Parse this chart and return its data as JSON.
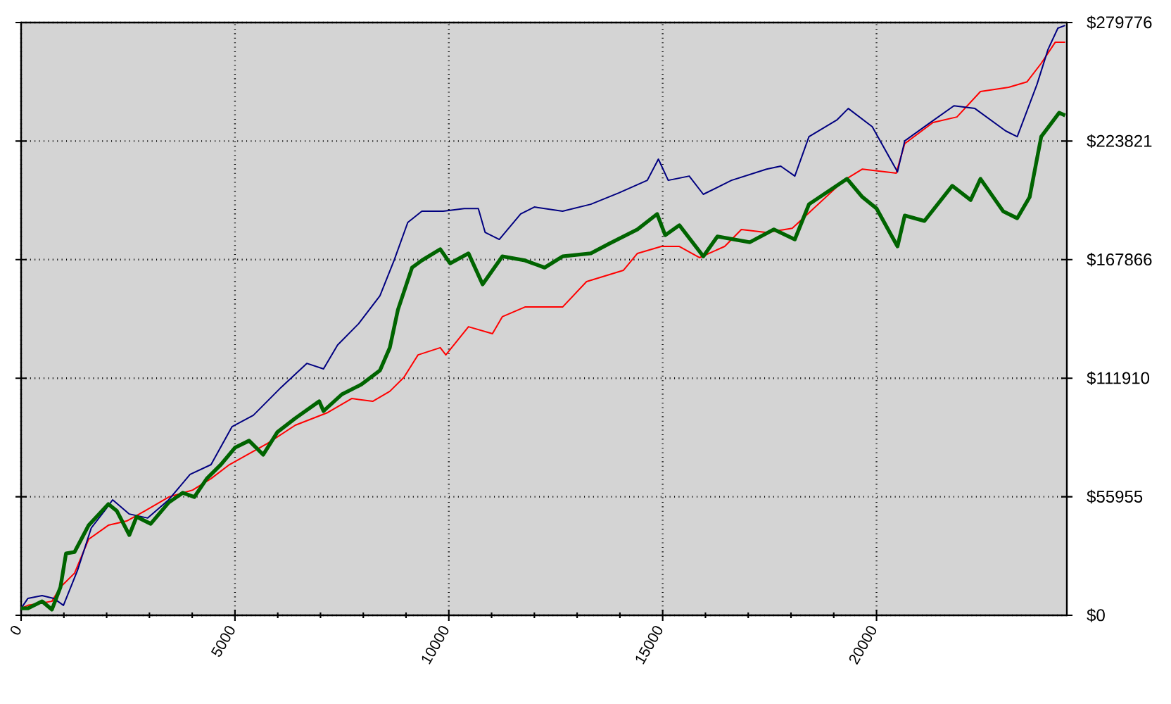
{
  "chart_data": {
    "type": "line",
    "xlim": [
      0,
      24450
    ],
    "ylim": [
      0,
      279776
    ],
    "xticks": [
      0,
      5000,
      10000,
      15000,
      20000
    ],
    "yticks": [
      {
        "value": 0,
        "label": "$0"
      },
      {
        "value": 55955,
        "label": "$55955"
      },
      {
        "value": 111910,
        "label": "$111910"
      },
      {
        "value": 167866,
        "label": "$167866"
      },
      {
        "value": 223821,
        "label": "$223821"
      },
      {
        "value": 279776,
        "label": "$279776"
      }
    ],
    "grid": true,
    "marker": "none",
    "line_style": "solid",
    "series": [
      {
        "color": "#ff0000",
        "x": [
          0,
          160,
          720,
          920,
          1250,
          1580,
          2040,
          2470,
          2890,
          3450,
          4010,
          4440,
          4870,
          5760,
          6410,
          7170,
          7730,
          8220,
          8620,
          8950,
          9280,
          9800,
          9930,
          10460,
          11020,
          11250,
          11780,
          12660,
          13220,
          14080,
          14410,
          14970,
          15390,
          15860,
          16450,
          16840,
          17430,
          18030,
          18490,
          19240,
          19670,
          20460,
          20660,
          21320,
          21880,
          22430,
          23090,
          23520,
          23850,
          24180,
          24410
        ],
        "values": [
          3300,
          4700,
          6600,
          13300,
          19900,
          35900,
          42500,
          44500,
          49200,
          55800,
          59100,
          64500,
          71100,
          81100,
          89700,
          95700,
          102300,
          101000,
          105700,
          112300,
          122900,
          126300,
          122900,
          136200,
          132900,
          140900,
          145500,
          145500,
          157500,
          162800,
          170800,
          174100,
          174100,
          168800,
          174100,
          182100,
          180700,
          182700,
          null,
          205300,
          210600,
          208700,
          222600,
          232600,
          235200,
          247200,
          249200,
          251800,
          260500,
          270500,
          270500
        ]
      },
      {
        "color": "#000080",
        "x": [
          0,
          160,
          490,
          760,
          990,
          1320,
          1640,
          1970,
          2140,
          2530,
          2960,
          3450,
          3950,
          4440,
          4930,
          5430,
          6080,
          6680,
          7070,
          7400,
          7890,
          8390,
          8720,
          9040,
          9370,
          9870,
          10360,
          10690,
          10850,
          11180,
          11680,
          12000,
          12660,
          13320,
          13980,
          14640,
          14900,
          15130,
          15620,
          15950,
          16610,
          17430,
          17760,
          18090,
          18420,
          19080,
          19340,
          19900,
          20490,
          20660,
          21210,
          21810,
          22300,
          23020,
          23290,
          23750,
          24010,
          24240,
          24410
        ],
        "values": [
          3300,
          8000,
          9300,
          8000,
          4700,
          21300,
          41200,
          49800,
          54500,
          47800,
          45900,
          54500,
          66500,
          71100,
          89000,
          94400,
          107600,
          118900,
          116300,
          127600,
          137600,
          150800,
          167500,
          185400,
          190700,
          190700,
          192000,
          192000,
          180700,
          177400,
          189400,
          192700,
          190700,
          194000,
          199400,
          205300,
          215300,
          205300,
          207300,
          198700,
          205300,
          210600,
          212000,
          207300,
          225900,
          233900,
          239200,
          230600,
          209300,
          223900,
          231900,
          240500,
          239200,
          228600,
          225900,
          250500,
          267100,
          277100,
          278400
        ]
      },
      {
        "color": "#006400",
        "x": [
          0,
          160,
          490,
          720,
          920,
          1050,
          1250,
          1580,
          2040,
          2240,
          2530,
          2700,
          3030,
          3450,
          3780,
          4050,
          4340,
          4670,
          5000,
          5330,
          5660,
          5990,
          6410,
          6970,
          7070,
          7500,
          7960,
          8390,
          8620,
          8810,
          9140,
          9370,
          9800,
          10030,
          10460,
          10790,
          11250,
          11780,
          12240,
          12660,
          13320,
          13750,
          14410,
          14870,
          15060,
          15390,
          15950,
          16280,
          17040,
          17600,
          18090,
          18420,
          19310,
          19670,
          20000,
          20490,
          20660,
          21120,
          21770,
          22200,
          22430,
          22960,
          23290,
          23580,
          23850,
          24270,
          24410
        ],
        "values": [
          3300,
          3300,
          6600,
          2700,
          13300,
          29200,
          29900,
          42500,
          52500,
          49200,
          37900,
          46500,
          43200,
          53200,
          57800,
          55800,
          64500,
          71100,
          79100,
          82400,
          75800,
          86400,
          93000,
          101000,
          96400,
          104300,
          109000,
          115600,
          126300,
          144200,
          164100,
          167500,
          172800,
          166100,
          170800,
          156200,
          169400,
          167500,
          164100,
          169400,
          170800,
          175400,
          182100,
          189400,
          179400,
          184100,
          169400,
          178800,
          176100,
          182100,
          177400,
          194000,
          206000,
          197400,
          192000,
          174100,
          188700,
          186100,
          202700,
          196000,
          206000,
          190700,
          187400,
          197400,
          225900,
          237200,
          235900
        ]
      }
    ]
  }
}
